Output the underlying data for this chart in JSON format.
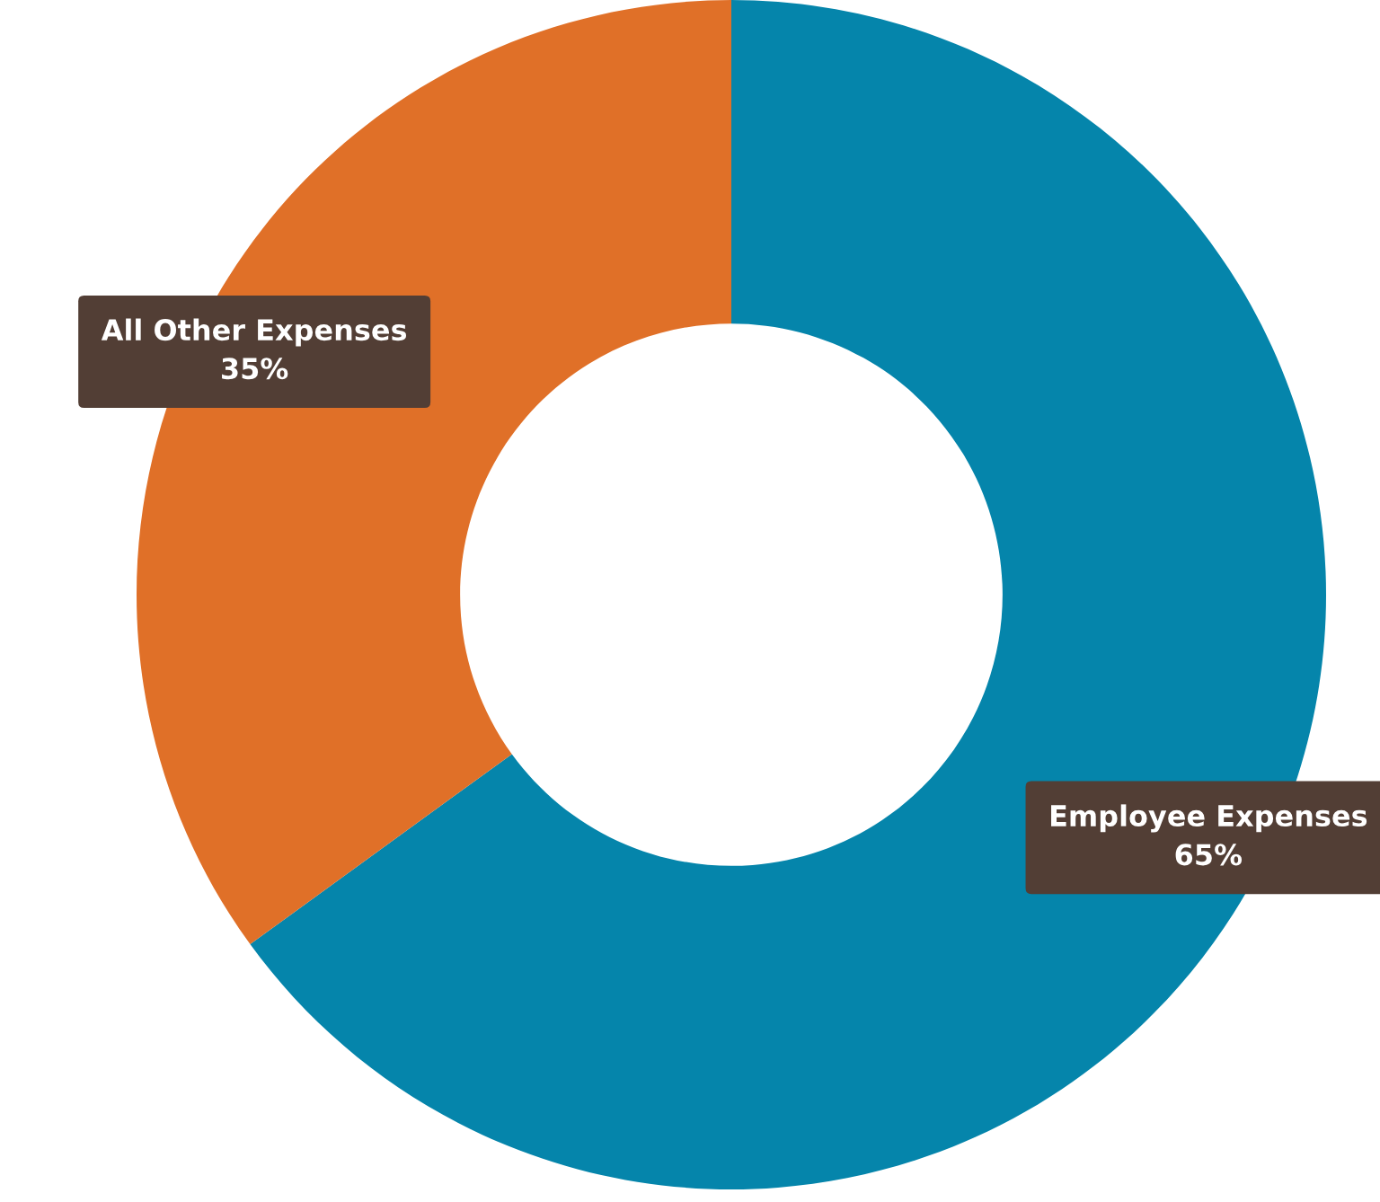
{
  "chart_data": {
    "type": "donut",
    "categories": [
      "Employee Expenses",
      "All Other Expenses"
    ],
    "values": [
      65,
      35
    ],
    "colors": [
      "#0585ab",
      "#e07028"
    ],
    "value_labels": [
      "65%",
      "35%"
    ]
  }
}
